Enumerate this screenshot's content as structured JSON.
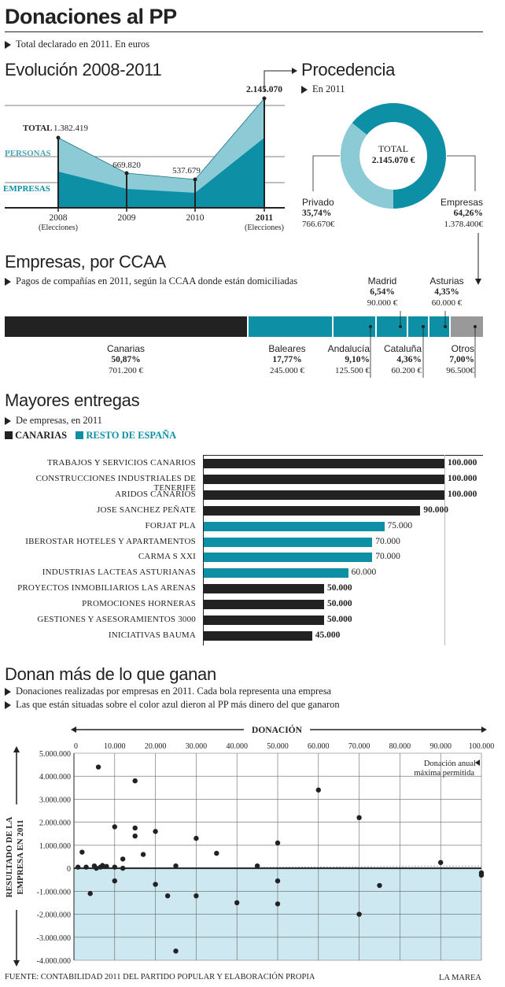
{
  "header": {
    "title": "Donaciones al PP",
    "subtitle": "Total declarado en 2011. En euros"
  },
  "colors": {
    "dark": "#222222",
    "teal": "#0d8fa5",
    "light_teal": "#8ccad6",
    "grey": "#999999",
    "pale_blue": "#cde8f0"
  },
  "evolucion": {
    "title": "Evolución 2008-2011",
    "series_labels": {
      "total": "TOTAL",
      "personas": "PERSONAS",
      "empresas": "EMPRESAS"
    },
    "years": [
      "2008",
      "2009",
      "2010",
      "2011"
    ],
    "year_notes": [
      "(Elecciones)",
      "",
      "",
      "(Elecciones)"
    ],
    "total_labels": [
      "1.382.419",
      "669.820",
      "537.679",
      "2.145.070"
    ]
  },
  "procedencia": {
    "title": "Procedencia",
    "subtitle": "En 2011",
    "center_label": "TOTAL",
    "center_value": "2.145.070 €",
    "privado": {
      "label": "Privado",
      "pct": "35,74%",
      "amount": "766.670€"
    },
    "empresas": {
      "label": "Empresas",
      "pct": "64,26%",
      "amount": "1.378.400€"
    }
  },
  "ccaa": {
    "title": "Empresas, por CCAA",
    "subtitle": "Pagos de compañías en 2011, según la CCAA donde están domiciliadas",
    "segments": [
      {
        "name": "Canarias",
        "pct": "50,87%",
        "amount": "701.200 €"
      },
      {
        "name": "Baleares",
        "pct": "17,77%",
        "amount": "245.000 €"
      },
      {
        "name": "Andalucía",
        "pct": "9,10%",
        "amount": "125.500 €"
      },
      {
        "name": "Madrid",
        "pct": "6,54%",
        "amount": "90.000 €"
      },
      {
        "name": "Cataluña",
        "pct": "4,36%",
        "amount": "60.200 €"
      },
      {
        "name": "Asturias",
        "pct": "4,35%",
        "amount": "60.000 €"
      },
      {
        "name": "Otros",
        "pct": "7,00%",
        "amount": "96.500€"
      }
    ]
  },
  "entregas": {
    "title": "Mayores entregas",
    "subtitle": "De empresas, en 2011",
    "legend": {
      "canarias": "CANARIAS",
      "resto": "RESTO DE ESPAÑA"
    },
    "items": [
      {
        "name": "TRABAJOS Y SERVICIOS CANARIOS",
        "value": 100000,
        "label": "100.000",
        "group": "canarias"
      },
      {
        "name": "CONSTRUCCIONES INDUSTRIALES DE TENERIFE",
        "value": 100000,
        "label": "100.000",
        "group": "canarias"
      },
      {
        "name": "ARIDOS CANARIOS",
        "value": 100000,
        "label": "100.000",
        "group": "canarias"
      },
      {
        "name": "JOSE SANCHEZ PEÑATE",
        "value": 90000,
        "label": "90.000",
        "group": "canarias"
      },
      {
        "name": "FORJAT PLA",
        "value": 75000,
        "label": "75.000",
        "group": "resto"
      },
      {
        "name": "IBEROSTAR HOTELES Y APARTAMENTOS",
        "value": 70000,
        "label": "70.000",
        "group": "resto"
      },
      {
        "name": "CARMA S XXI",
        "value": 70000,
        "label": "70.000",
        "group": "resto"
      },
      {
        "name": "INDUSTRIAS LACTEAS ASTURIANAS",
        "value": 60000,
        "label": "60.000",
        "group": "resto"
      },
      {
        "name": "PROYECTOS INMOBILIARIOS LAS ARENAS",
        "value": 50000,
        "label": "50.000",
        "group": "canarias"
      },
      {
        "name": "PROMOCIONES HORNERAS",
        "value": 50000,
        "label": "50.000",
        "group": "canarias"
      },
      {
        "name": "GESTIONES Y ASESORAMIENTOS 3000",
        "value": 50000,
        "label": "50.000",
        "group": "canarias"
      },
      {
        "name": "INICIATIVAS BAUMA",
        "value": 45000,
        "label": "45.000",
        "group": "canarias"
      }
    ]
  },
  "scatter": {
    "title": "Donan más de lo que ganan",
    "subtitle1": "Donaciones realizadas por empresas en 2011. Cada bola representa una empresa",
    "subtitle2": "Las que están situadas sobre el color azul dieron al PP más dinero del que ganaron",
    "xlabel": "DONACIÓN",
    "ylabel_line1": "RESULTADO DE LA",
    "ylabel_line2": "EMPRESA EN 2011",
    "annotation": "Donación anual máxima permitida",
    "xticks": [
      "0",
      "10.000",
      "20.000",
      "30.000",
      "40.000",
      "50.000",
      "60.000",
      "70.000",
      "80.000",
      "90.000",
      "100.000"
    ],
    "yticks": [
      "5.000.000",
      "4.000.000",
      "3.000.000",
      "2.000.000",
      "1.000.000",
      "0",
      "-1.000.000",
      "-2.000.000",
      "-3.000.000",
      "-4.000.000"
    ],
    "chart_data": {
      "type": "scatter",
      "title": "Donan más de lo que ganan",
      "xlabel": "DONACIÓN",
      "ylabel": "RESULTADO DE LA EMPRESA EN 2011",
      "xlim": [
        0,
        100000
      ],
      "ylim": [
        -4000000,
        5000000
      ],
      "points": [
        [
          1000,
          50000
        ],
        [
          2000,
          700000
        ],
        [
          3000,
          50000
        ],
        [
          4000,
          -1100000
        ],
        [
          5000,
          100000
        ],
        [
          5500,
          0
        ],
        [
          6000,
          4400000
        ],
        [
          6500,
          50000
        ],
        [
          7000,
          120000
        ],
        [
          8000,
          80000
        ],
        [
          10000,
          1800000
        ],
        [
          10000,
          50000
        ],
        [
          10000,
          -550000
        ],
        [
          12000,
          400000
        ],
        [
          12000,
          0
        ],
        [
          15000,
          3800000
        ],
        [
          15000,
          1750000
        ],
        [
          15000,
          1400000
        ],
        [
          17000,
          600000
        ],
        [
          20000,
          1600000
        ],
        [
          20000,
          -700000
        ],
        [
          23000,
          -1200000
        ],
        [
          25000,
          100000
        ],
        [
          25000,
          -3600000
        ],
        [
          30000,
          1300000
        ],
        [
          30000,
          -1200000
        ],
        [
          35000,
          650000
        ],
        [
          40000,
          -1500000
        ],
        [
          45000,
          100000
        ],
        [
          50000,
          1100000
        ],
        [
          50000,
          -550000
        ],
        [
          50000,
          -1550000
        ],
        [
          60000,
          3400000
        ],
        [
          70000,
          2200000
        ],
        [
          70000,
          -2000000
        ],
        [
          75000,
          -750000
        ],
        [
          90000,
          250000
        ],
        [
          100000,
          -200000
        ],
        [
          100000,
          -300000
        ]
      ]
    }
  },
  "footer": {
    "source": "FUENTE: CONTABILIDAD 2011 DEL PARTIDO POPULAR Y ELABORACIÓN PROPIA",
    "brand": "LA MAREA"
  }
}
